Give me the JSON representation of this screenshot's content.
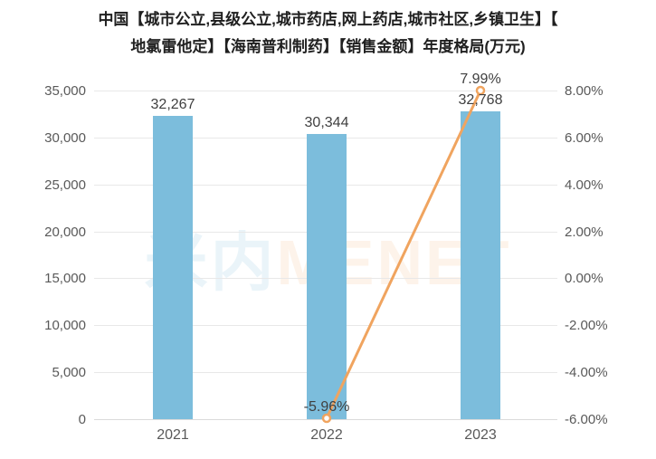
{
  "title": {
    "line1": "中国【城市公立,县级公立,城市药店,网上药店,城市社区,乡镇卫生】【",
    "line2": "地氯雷他定】【海南普利制药】【销售金额】年度格局(万元)"
  },
  "watermark": {
    "cjk": "米内",
    "latin": "MENET"
  },
  "chart_data": {
    "type": "bar",
    "subtype": "bar-with-line-overlay",
    "title": "中国【城市公立,县级公立,城市药店,网上药店,城市社区,乡镇卫生】【地氯雷他定】【海南普利制药】【销售金额】年度格局(万元)",
    "categories": [
      "2021",
      "2022",
      "2023"
    ],
    "series": [
      {
        "role": "bar",
        "values": [
          32267,
          30344,
          32768
        ],
        "labels": [
          "32,267",
          "30,344",
          "32,768"
        ],
        "color": "#7CBDDC"
      },
      {
        "role": "line",
        "color": "#F0A45F",
        "points": [
          {
            "category": "2022",
            "value": -5.96,
            "label": "-5.96%"
          },
          {
            "category": "2023",
            "value": 7.99,
            "label": "7.99%"
          }
        ]
      }
    ],
    "left_axis": {
      "min": 0,
      "max": 35000,
      "ticks": [
        "35,000",
        "30,000",
        "25,000",
        "20,000",
        "15,000",
        "10,000",
        "5,000",
        "0"
      ]
    },
    "right_axis": {
      "min": -6,
      "max": 8,
      "ticks": [
        "8.00%",
        "6.00%",
        "4.00%",
        "2.00%",
        "0.00%",
        "-2.00%",
        "-4.00%",
        "-6.00%"
      ]
    },
    "grid": "horizontal",
    "legend": "none"
  }
}
